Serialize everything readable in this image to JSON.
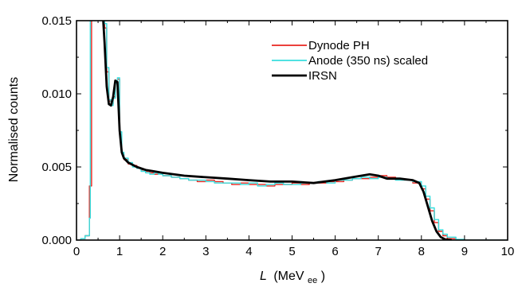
{
  "chart_data": {
    "type": "line",
    "xlabel_italic": "L",
    "xlabel_unit": "(MeV",
    "xlabel_sub": "ee",
    "xlabel_close": ")",
    "ylabel": "Normalised counts",
    "xlim": [
      0,
      10
    ],
    "ylim": [
      0,
      0.015
    ],
    "x_ticks": [
      "0",
      "1",
      "2",
      "3",
      "4",
      "5",
      "6",
      "7",
      "8",
      "9",
      "10"
    ],
    "y_ticks": [
      "0.000",
      "0.005",
      "0.010",
      "0.015"
    ],
    "grid": false,
    "legend_position": "top-right",
    "series": [
      {
        "name": "Dynode PH",
        "color": "#e8251f",
        "style": "step",
        "x": [
          0.0,
          0.1,
          0.2,
          0.3,
          0.35,
          0.4,
          0.5,
          0.6,
          0.65,
          0.7,
          0.75,
          0.8,
          0.85,
          0.9,
          0.95,
          1.0,
          1.05,
          1.1,
          1.2,
          1.3,
          1.4,
          1.5,
          1.6,
          1.7,
          1.8,
          1.9,
          2.0,
          2.2,
          2.4,
          2.6,
          2.8,
          3.0,
          3.2,
          3.4,
          3.6,
          3.8,
          4.0,
          4.2,
          4.4,
          4.6,
          4.8,
          5.0,
          5.2,
          5.4,
          5.6,
          5.8,
          6.0,
          6.2,
          6.4,
          6.6,
          6.8,
          7.0,
          7.2,
          7.4,
          7.6,
          7.8,
          8.0,
          8.1,
          8.2,
          8.3,
          8.4,
          8.5,
          8.6,
          8.8,
          9.0,
          10.0
        ],
        "y": [
          0.0,
          0.0001,
          0.0003,
          0.0037,
          0.016,
          0.016,
          0.016,
          0.016,
          0.0145,
          0.0115,
          0.0095,
          0.0093,
          0.0098,
          0.0108,
          0.011,
          0.0072,
          0.0059,
          0.0055,
          0.0052,
          0.0051,
          0.0049,
          0.0048,
          0.0047,
          0.0046,
          0.0045,
          0.0046,
          0.0044,
          0.0043,
          0.0042,
          0.0041,
          0.004,
          0.0041,
          0.004,
          0.0039,
          0.0038,
          0.0039,
          0.0038,
          0.0038,
          0.0037,
          0.0038,
          0.0038,
          0.0039,
          0.0038,
          0.0039,
          0.0039,
          0.004,
          0.004,
          0.0041,
          0.0042,
          0.0042,
          0.0043,
          0.0044,
          0.0043,
          0.0042,
          0.0041,
          0.0039,
          0.0035,
          0.0028,
          0.002,
          0.0012,
          0.0006,
          0.0003,
          0.0001,
          3e-05,
          0.0,
          0.0
        ]
      },
      {
        "name": "Anode (350 ns) scaled",
        "color": "#38dede",
        "style": "step",
        "x": [
          0.0,
          0.1,
          0.2,
          0.3,
          0.32,
          0.4,
          0.5,
          0.6,
          0.65,
          0.7,
          0.75,
          0.8,
          0.85,
          0.9,
          0.95,
          1.0,
          1.05,
          1.1,
          1.2,
          1.3,
          1.4,
          1.5,
          1.6,
          1.7,
          1.8,
          1.9,
          2.0,
          2.2,
          2.4,
          2.6,
          2.8,
          3.0,
          3.2,
          3.4,
          3.6,
          3.8,
          4.0,
          4.2,
          4.4,
          4.6,
          4.8,
          5.0,
          5.2,
          5.4,
          5.6,
          5.8,
          6.0,
          6.2,
          6.4,
          6.6,
          6.8,
          7.0,
          7.2,
          7.4,
          7.6,
          7.8,
          8.0,
          8.1,
          8.2,
          8.3,
          8.4,
          8.5,
          8.6,
          8.8,
          9.0,
          10.0
        ],
        "y": [
          0.0,
          0.0001,
          0.0003,
          0.0015,
          0.016,
          0.016,
          0.016,
          0.016,
          0.0148,
          0.0118,
          0.0096,
          0.0092,
          0.0097,
          0.0107,
          0.0111,
          0.0074,
          0.006,
          0.0056,
          0.0053,
          0.005,
          0.0049,
          0.0047,
          0.0046,
          0.0045,
          0.0046,
          0.0045,
          0.0044,
          0.0043,
          0.0042,
          0.0041,
          0.0041,
          0.004,
          0.0039,
          0.0039,
          0.0039,
          0.0038,
          0.0039,
          0.0037,
          0.0038,
          0.0039,
          0.0038,
          0.0038,
          0.0039,
          0.0039,
          0.004,
          0.0039,
          0.0041,
          0.0041,
          0.0042,
          0.0043,
          0.0042,
          0.0043,
          0.0042,
          0.0041,
          0.0041,
          0.004,
          0.0037,
          0.003,
          0.0022,
          0.0014,
          0.0007,
          0.0004,
          0.0002,
          5e-05,
          0.0,
          0.0
        ]
      },
      {
        "name": "IRSN",
        "color": "#000000",
        "style": "smooth",
        "x": [
          0.6,
          0.65,
          0.7,
          0.75,
          0.8,
          0.85,
          0.9,
          0.95,
          1.0,
          1.05,
          1.1,
          1.2,
          1.4,
          1.6,
          1.8,
          2.0,
          2.5,
          3.0,
          3.5,
          4.0,
          4.5,
          5.0,
          5.5,
          6.0,
          6.4,
          6.8,
          7.0,
          7.2,
          7.5,
          7.8,
          7.95,
          8.05,
          8.15,
          8.25,
          8.35,
          8.45,
          8.55,
          8.7
        ],
        "y": [
          0.016,
          0.0135,
          0.0105,
          0.0093,
          0.0092,
          0.0098,
          0.0109,
          0.0108,
          0.0075,
          0.006,
          0.0056,
          0.0053,
          0.005,
          0.0048,
          0.0047,
          0.0046,
          0.0044,
          0.0043,
          0.0042,
          0.0041,
          0.004,
          0.004,
          0.0039,
          0.0041,
          0.0043,
          0.0045,
          0.0044,
          0.0042,
          0.0042,
          0.0041,
          0.0039,
          0.0033,
          0.0023,
          0.0013,
          0.0006,
          0.0002,
          5e-05,
          0.0
        ]
      }
    ]
  }
}
